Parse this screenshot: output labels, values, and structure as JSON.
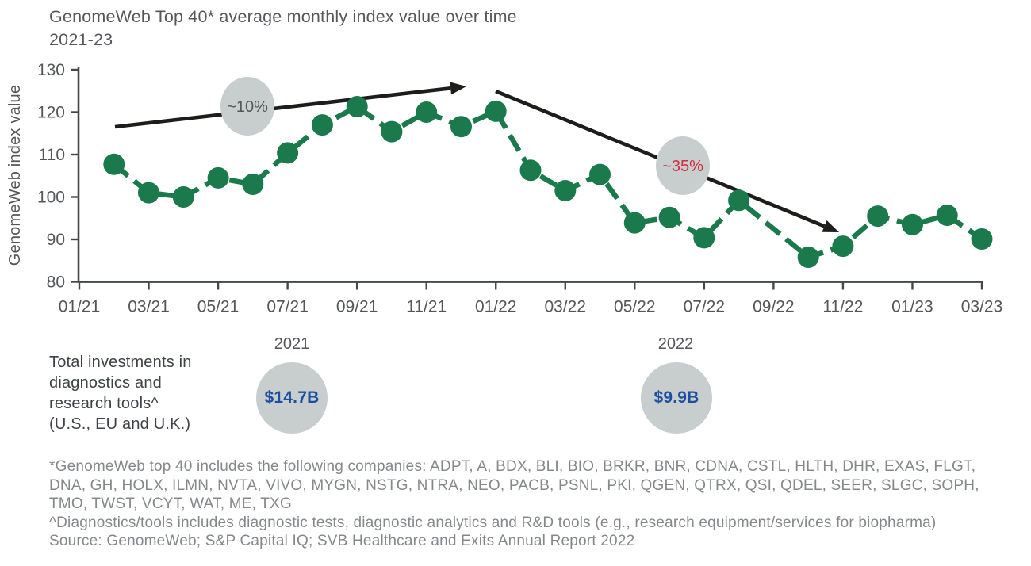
{
  "title": {
    "line1": "GenomeWeb Top 40* average monthly index value over time",
    "line2": "2021-23"
  },
  "chart_data": {
    "type": "line",
    "title": "GenomeWeb Top 40* average monthly index value over time 2021-23",
    "xlabel": "",
    "ylabel": "GenomeWeb index value",
    "ylim": [
      80,
      130
    ],
    "yticks": [
      80,
      90,
      100,
      110,
      120,
      130
    ],
    "xticks": [
      "01/21",
      "03/21",
      "05/21",
      "07/21",
      "09/21",
      "11/21",
      "01/22",
      "03/22",
      "05/22",
      "07/22",
      "09/22",
      "11/22",
      "01/23",
      "03/23"
    ],
    "x_start_month": "01/21",
    "x_end_month": "03/23",
    "grid": false,
    "legend": false,
    "series": [
      {
        "name": "GenomeWeb Top 40 average monthly index value",
        "style": "dashed-with-markers",
        "points": [
          {
            "month": "02/21",
            "value": 107.7
          },
          {
            "month": "03/21",
            "value": 101.0
          },
          {
            "month": "04/21",
            "value": 100.0
          },
          {
            "month": "05/21",
            "value": 104.5
          },
          {
            "month": "06/21",
            "value": 103.0
          },
          {
            "month": "07/21",
            "value": 110.4
          },
          {
            "month": "08/21",
            "value": 117.0
          },
          {
            "month": "09/21",
            "value": 121.3
          },
          {
            "month": "10/21",
            "value": 115.4
          },
          {
            "month": "11/21",
            "value": 120.0
          },
          {
            "month": "12/21",
            "value": 116.6
          },
          {
            "month": "01/22",
            "value": 120.2
          },
          {
            "month": "02/22",
            "value": 106.3
          },
          {
            "month": "03/22",
            "value": 101.5
          },
          {
            "month": "04/22",
            "value": 105.3
          },
          {
            "month": "05/22",
            "value": 93.9
          },
          {
            "month": "06/22",
            "value": 95.2
          },
          {
            "month": "07/22",
            "value": 90.4
          },
          {
            "month": "08/22",
            "value": 99.2
          },
          {
            "month": "10/22",
            "value": 85.8
          },
          {
            "month": "11/22",
            "value": 88.4
          },
          {
            "month": "12/22",
            "value": 95.5
          },
          {
            "month": "01/23",
            "value": 93.5
          },
          {
            "month": "02/23",
            "value": 95.7
          },
          {
            "month": "03/23",
            "value": 90.1
          }
        ]
      }
    ],
    "annotations": [
      {
        "label": "~10%",
        "direction": "up",
        "arrow_from": [
          145,
          160
        ],
        "arrow_to": [
          588,
          109
        ],
        "bubble_center": [
          312,
          134
        ]
      },
      {
        "label": "~35%",
        "direction": "down",
        "arrow_from": [
          625,
          115
        ],
        "arrow_to": [
          1058,
          293
        ],
        "bubble_center": [
          861,
          209
        ]
      }
    ]
  },
  "investments": {
    "label_lines": [
      "Total investments in",
      "diagnostics and",
      "research tools^",
      "(U.S., EU and U.K.)"
    ],
    "items": [
      {
        "year": "2021",
        "amount": "$14.7B"
      },
      {
        "year": "2022",
        "amount": "$9.9B"
      }
    ]
  },
  "footnotes": [
    "*GenomeWeb top 40 includes the following companies: ADPT, A, BDX, BLI, BIO, BRKR, BNR, CDNA, CSTL, HLTH, DHR, EXAS, FLGT,",
    "DNA, GH, HOLX, ILMN, NVTA, VIVO, MYGN, NSTG, NTRA, NEO, PACB, PSNL, PKI, QGEN, QTRX, QSI, QDEL, SEER, SLGC, SOPH,",
    "TMO, TWST, VCYT, WAT, ME, TXG",
    "^Diagnostics/tools includes diagnostic tests, diagnostic analytics and R&D tools (e.g., research equipment/services for biopharma)",
    "Source: GenomeWeb; S&P Capital IQ; SVB Healthcare and Exits Annual Report 2022"
  ],
  "colors": {
    "series_green": "#1a7a4b",
    "axis": "#45484b",
    "tick_text": "#54565a",
    "arrow_black": "#1d1d1b",
    "bubble_gray": "#c8cecd",
    "annotation_up_text": "#54565a",
    "annotation_down_text": "#d22d3e",
    "investment_blue": "#1d4fa1",
    "footnote_text": "#85888b"
  }
}
